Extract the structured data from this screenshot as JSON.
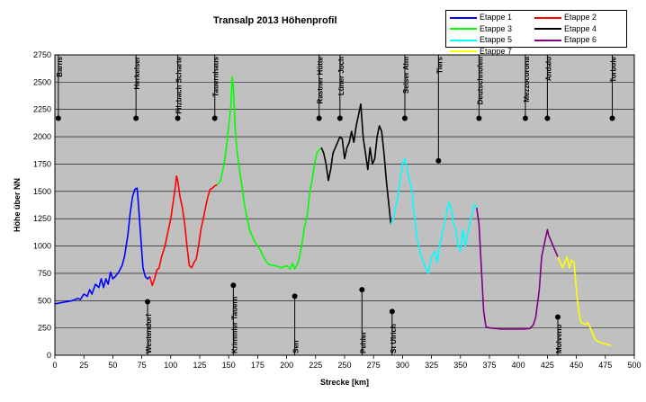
{
  "chart_data": {
    "type": "line",
    "title": "Transalp 2013 Höhenprofil",
    "xlabel": "Strecke [km]",
    "ylabel": "Höhe über NN",
    "xlim": [
      0,
      500
    ],
    "ylim": [
      0,
      2750
    ],
    "xticks": [
      0,
      25,
      50,
      75,
      100,
      125,
      150,
      175,
      200,
      225,
      250,
      275,
      300,
      325,
      350,
      375,
      400,
      425,
      450,
      475,
      500
    ],
    "yticks": [
      0,
      250,
      500,
      750,
      1000,
      1250,
      1500,
      1750,
      2000,
      2250,
      2500,
      2750
    ],
    "grid": true,
    "background": "#c0c0c0",
    "legend_position": "top-right",
    "series": [
      {
        "name": "Etappe 1",
        "color": "#0000ff",
        "x": [
          0,
          5,
          10,
          15,
          20,
          22,
          25,
          28,
          30,
          32,
          35,
          38,
          40,
          42,
          44,
          46,
          48,
          50,
          52,
          55,
          58,
          60,
          63,
          65,
          67,
          69,
          71,
          72,
          74,
          76,
          78,
          80,
          82
        ],
        "y": [
          470,
          480,
          490,
          500,
          520,
          510,
          560,
          540,
          600,
          560,
          650,
          620,
          700,
          620,
          700,
          650,
          760,
          700,
          720,
          760,
          820,
          900,
          1100,
          1300,
          1450,
          1520,
          1530,
          1400,
          1100,
          800,
          720,
          700,
          720
        ]
      },
      {
        "name": "Etappe 2",
        "color": "#ff0000",
        "x": [
          82,
          84,
          86,
          88,
          90,
          92,
          95,
          98,
          100,
          102,
          104,
          105,
          106,
          108,
          110,
          112,
          114,
          116,
          118,
          120,
          122,
          124,
          126,
          128,
          130,
          132,
          134,
          136,
          138,
          140
        ],
        "y": [
          720,
          640,
          700,
          780,
          800,
          900,
          1000,
          1150,
          1250,
          1400,
          1550,
          1640,
          1600,
          1450,
          1350,
          1200,
          1000,
          820,
          800,
          850,
          880,
          1000,
          1150,
          1250,
          1350,
          1450,
          1520,
          1530,
          1550,
          1560
        ]
      },
      {
        "name": "Etappe 3",
        "color": "#00ff00",
        "x": [
          140,
          143,
          146,
          148,
          150,
          152,
          153,
          154,
          156,
          158,
          160,
          162,
          164,
          166,
          168,
          170,
          172,
          175,
          178,
          180,
          183,
          185,
          190,
          195,
          200,
          203,
          205,
          207,
          210,
          213,
          215,
          218,
          220,
          222,
          224,
          226,
          228,
          230
        ],
        "y": [
          1560,
          1600,
          1750,
          1900,
          2100,
          2300,
          2550,
          2450,
          2000,
          1800,
          1650,
          1500,
          1350,
          1250,
          1150,
          1100,
          1050,
          1000,
          950,
          900,
          850,
          830,
          820,
          800,
          820,
          790,
          840,
          790,
          850,
          1000,
          1150,
          1300,
          1500,
          1600,
          1750,
          1850,
          1880,
          1900
        ]
      },
      {
        "name": "Etappe 4",
        "color": "#000000",
        "x": [
          230,
          232,
          234,
          236,
          238,
          240,
          242,
          244,
          246,
          248,
          250,
          252,
          254,
          256,
          258,
          260,
          262,
          264,
          265,
          266,
          268,
          270,
          272,
          274,
          276,
          278,
          280,
          282,
          284,
          286,
          288,
          290
        ],
        "y": [
          1900,
          1850,
          1750,
          1600,
          1700,
          1850,
          1900,
          1950,
          2000,
          1980,
          1800,
          1900,
          1950,
          2050,
          1950,
          2100,
          2200,
          2300,
          2150,
          2000,
          1850,
          1700,
          1900,
          1750,
          1800,
          2000,
          2100,
          2050,
          1850,
          1600,
          1400,
          1200
        ]
      },
      {
        "name": "Etappe 5",
        "color": "#00ffff",
        "x": [
          290,
          292,
          294,
          296,
          298,
          300,
          302,
          304,
          306,
          308,
          310,
          312,
          314,
          316,
          318,
          320,
          322,
          325,
          328,
          330,
          332,
          334,
          336,
          338,
          340,
          342,
          344,
          346,
          348,
          350,
          352,
          354,
          356,
          358,
          360,
          362,
          364
        ],
        "y": [
          1200,
          1250,
          1350,
          1450,
          1600,
          1750,
          1800,
          1700,
          1600,
          1500,
          1300,
          1100,
          1000,
          900,
          850,
          800,
          750,
          900,
          950,
          850,
          1000,
          1100,
          1200,
          1300,
          1400,
          1350,
          1200,
          1150,
          1000,
          950,
          1150,
          1000,
          1100,
          1200,
          1300,
          1380,
          1350
        ]
      },
      {
        "name": "Etappe 6",
        "color": "#800080",
        "x": [
          364,
          366,
          368,
          370,
          372,
          375,
          380,
          385,
          390,
          395,
          400,
          405,
          410,
          413,
          415,
          418,
          420,
          422,
          424,
          425,
          426,
          428,
          430,
          432,
          434
        ],
        "y": [
          1350,
          1200,
          800,
          400,
          260,
          250,
          245,
          240,
          240,
          240,
          240,
          240,
          245,
          280,
          350,
          600,
          900,
          1000,
          1100,
          1150,
          1100,
          1050,
          1000,
          950,
          900
        ]
      },
      {
        "name": "Etappe 7",
        "color": "#ffff00",
        "x": [
          434,
          436,
          438,
          440,
          442,
          444,
          446,
          448,
          450,
          452,
          454,
          456,
          458,
          460,
          462,
          464,
          466,
          468,
          470,
          473,
          476,
          480
        ],
        "y": [
          900,
          850,
          800,
          850,
          900,
          800,
          870,
          850,
          600,
          400,
          300,
          290,
          280,
          300,
          250,
          200,
          150,
          130,
          120,
          110,
          100,
          90
        ]
      }
    ],
    "annotations": [
      {
        "label": "Barns",
        "x": 3,
        "y": 2170,
        "dir": "up"
      },
      {
        "label": "Herkelser",
        "x": 70,
        "y": 2170,
        "dir": "up"
      },
      {
        "label": "Westendorf",
        "x": 80,
        "y": 490,
        "dir": "down"
      },
      {
        "label": "Filzbach Scharte",
        "x": 106,
        "y": 2170,
        "dir": "up"
      },
      {
        "label": "Tauernhaus",
        "x": 138,
        "y": 2170,
        "dir": "up"
      },
      {
        "label": "Krimmler Tauern",
        "x": 154,
        "y": 640,
        "dir": "down"
      },
      {
        "label": "Sen",
        "x": 207,
        "y": 540,
        "dir": "down"
      },
      {
        "label": "Rastner Hütte",
        "x": 228,
        "y": 2170,
        "dir": "up"
      },
      {
        "label": "Lüner Joch",
        "x": 246,
        "y": 2170,
        "dir": "up"
      },
      {
        "label": "Pehler",
        "x": 265,
        "y": 600,
        "dir": "down"
      },
      {
        "label": "St Ulrich",
        "x": 291,
        "y": 400,
        "dir": "down"
      },
      {
        "label": "Seiser Alm",
        "x": 302,
        "y": 2170,
        "dir": "up"
      },
      {
        "label": "Tiers",
        "x": 331,
        "y": 1780,
        "dir": "up"
      },
      {
        "label": "Deutschnofen",
        "x": 366,
        "y": 2170,
        "dir": "up"
      },
      {
        "label": "Mezzocorona",
        "x": 406,
        "y": 2170,
        "dir": "up"
      },
      {
        "label": "Andalo",
        "x": 425,
        "y": 2170,
        "dir": "up"
      },
      {
        "label": "Molveno",
        "x": 434,
        "y": 350,
        "dir": "down"
      },
      {
        "label": "Torbole",
        "x": 481,
        "y": 2170,
        "dir": "up"
      }
    ]
  }
}
